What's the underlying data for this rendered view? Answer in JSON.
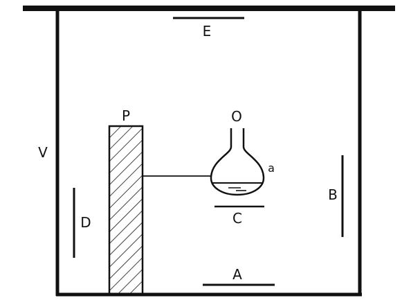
{
  "labels": {
    "E": "E",
    "P": "P",
    "O": "O",
    "V": "V",
    "a": "a",
    "B": "B",
    "C": "C",
    "D": "D",
    "A": "A"
  },
  "colors": {
    "ink": "#111111",
    "background": "#ffffff"
  }
}
